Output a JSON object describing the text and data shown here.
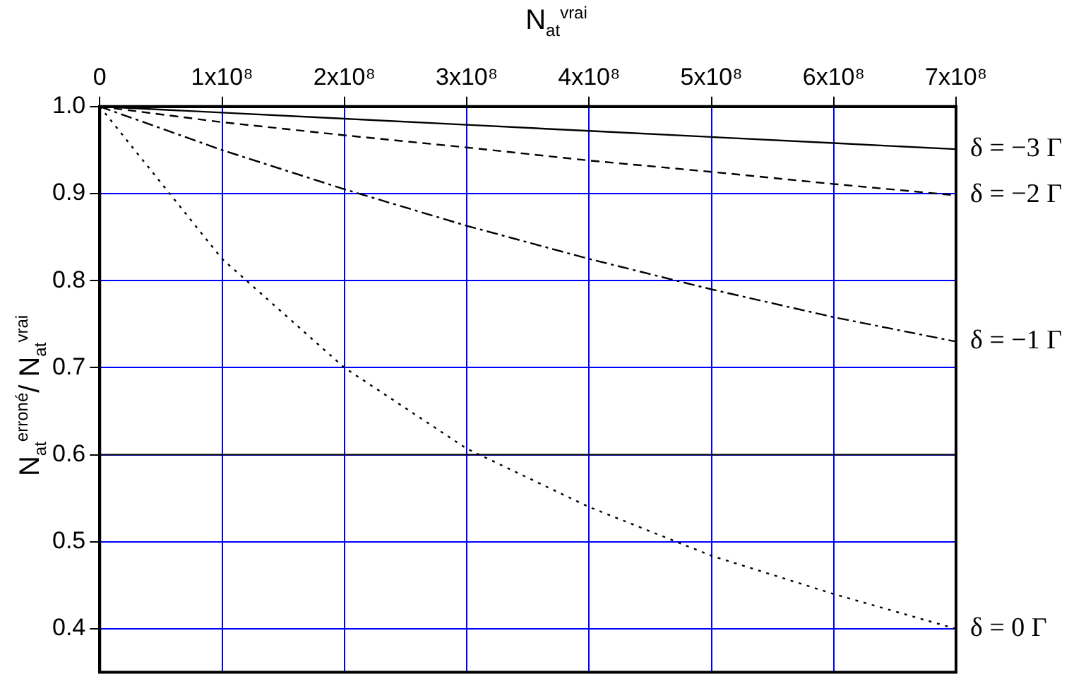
{
  "chart_data": {
    "type": "line",
    "xlabel": "N$_{at}$$^{vrai}$",
    "ylabel": "N$_{at}$$^{erroné}$/ N$_{at}$$^{vrai}$",
    "x": [
      0,
      100000000,
      200000000,
      300000000,
      400000000,
      500000000,
      600000000,
      700000000
    ],
    "series": [
      {
        "name": "δ = −3 Γ",
        "color": "#000000",
        "line_style": "solid",
        "values": [
          1.0,
          0.993,
          0.986,
          0.979,
          0.972,
          0.965,
          0.958,
          0.951
        ]
      },
      {
        "name": "δ = −2 Γ",
        "color": "#000000",
        "line_style": "dashed",
        "values": [
          1.0,
          0.982,
          0.967,
          0.953,
          0.938,
          0.925,
          0.911,
          0.898
        ]
      },
      {
        "name": "δ = −1 Γ",
        "color": "#000000",
        "line_style": "dashdot",
        "values": [
          1.0,
          0.95,
          0.905,
          0.863,
          0.825,
          0.79,
          0.758,
          0.73
        ]
      },
      {
        "name": "δ = 0 Γ",
        "color": "#000000",
        "line_style": "dotted",
        "values": [
          1.0,
          0.825,
          0.7,
          0.607,
          0.54,
          0.484,
          0.44,
          0.4
        ]
      }
    ],
    "xlim": [
      0,
      700000000
    ],
    "xticks": [
      0,
      {
        "value": 100000000,
        "label": "1x10⁸"
      },
      {
        "value": 200000000,
        "label": "2x10⁸"
      },
      {
        "value": 300000000,
        "label": "3x10⁸"
      },
      {
        "value": 400000000,
        "label": "4x10⁸"
      },
      {
        "value": 500000000,
        "label": "5x10⁸"
      },
      {
        "value": 600000000,
        "label": "6x10⁸"
      },
      {
        "value": 700000000,
        "label": "7x10⁸"
      }
    ],
    "ylim": [
      0.35,
      1.0
    ],
    "yticks": [
      {
        "value": 0.4,
        "label": "0.4"
      },
      {
        "value": 0.5,
        "label": "0.5"
      },
      {
        "value": 0.6,
        "label": "0.6"
      },
      {
        "value": 0.7,
        "label": "0.7"
      },
      {
        "value": 0.8,
        "label": "0.8"
      },
      {
        "value": 0.9,
        "label": "0.9"
      },
      {
        "value": 1.0,
        "label": "1.0"
      }
    ],
    "ref_lines": [
      {
        "axis": "y",
        "value": 0.6,
        "color": "#000000"
      }
    ],
    "grid": true,
    "legend": false,
    "marker": "none"
  }
}
